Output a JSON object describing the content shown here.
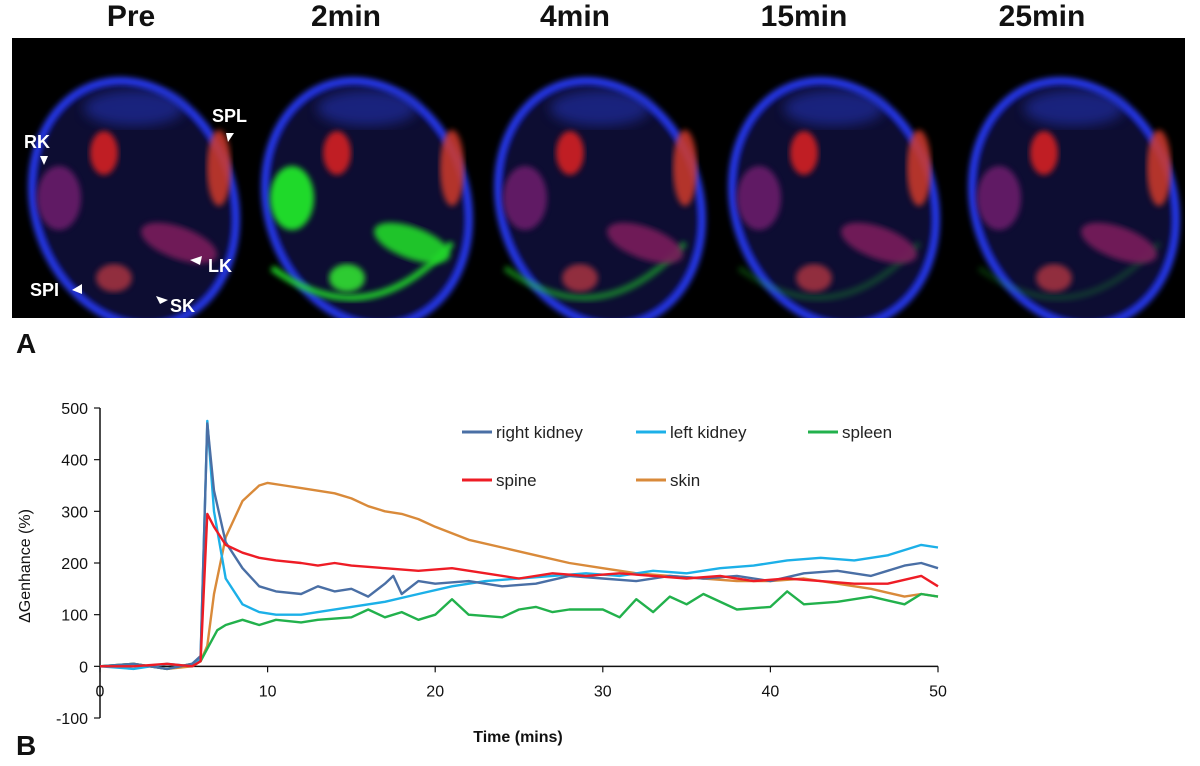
{
  "panel_a": {
    "label": "A",
    "frames": [
      {
        "title": "Pre"
      },
      {
        "title": "2min"
      },
      {
        "title": "4min"
      },
      {
        "title": "15min"
      },
      {
        "title": "25min"
      }
    ],
    "annotations": [
      "RK",
      "SPL",
      "LK",
      "SPI",
      "SK"
    ]
  },
  "panel_b": {
    "label": "B"
  },
  "chart_data": {
    "type": "line",
    "title": "",
    "xlabel": "Time (mins)",
    "ylabel": "ΔGenhance (%)",
    "xlim": [
      0,
      50
    ],
    "ylim": [
      -100,
      500
    ],
    "xticks": [
      0,
      10,
      20,
      30,
      40,
      50
    ],
    "yticks": [
      -100,
      0,
      100,
      200,
      300,
      400,
      500
    ],
    "legend": [
      "right kidney",
      "left kidney",
      "spleen",
      "spine",
      "skin"
    ],
    "series": [
      {
        "name": "right kidney",
        "color": "#4a6fa5",
        "x": [
          0,
          2,
          4,
          5.5,
          6,
          6.4,
          6.8,
          7.5,
          8.5,
          9.5,
          10.5,
          12,
          13,
          14,
          15,
          16,
          17,
          17.5,
          18,
          19,
          20,
          22,
          24,
          26,
          28,
          30,
          32,
          34,
          36,
          38,
          40,
          42,
          44,
          46,
          48,
          49,
          50
        ],
        "values": [
          0,
          5,
          -5,
          5,
          20,
          470,
          340,
          240,
          190,
          155,
          145,
          140,
          155,
          145,
          150,
          135,
          160,
          175,
          140,
          165,
          160,
          165,
          155,
          160,
          175,
          170,
          165,
          175,
          170,
          175,
          165,
          180,
          185,
          175,
          195,
          200,
          190
        ]
      },
      {
        "name": "left kidney",
        "color": "#1cb0e8",
        "x": [
          0,
          2,
          4,
          5.5,
          6,
          6.4,
          6.8,
          7.5,
          8.5,
          9.5,
          10.5,
          12,
          13,
          15,
          17,
          19,
          21,
          23,
          25,
          27,
          29,
          31,
          33,
          35,
          37,
          39,
          41,
          43,
          45,
          47,
          49,
          50
        ],
        "values": [
          0,
          -5,
          5,
          0,
          15,
          475,
          300,
          170,
          120,
          105,
          100,
          100,
          105,
          115,
          125,
          140,
          155,
          165,
          170,
          175,
          180,
          175,
          185,
          180,
          190,
          195,
          205,
          210,
          205,
          215,
          235,
          230
        ]
      },
      {
        "name": "spleen",
        "color": "#22b14c",
        "x": [
          0,
          2,
          4,
          5.5,
          6,
          6.5,
          7,
          7.5,
          8.5,
          9.5,
          10.5,
          12,
          13,
          15,
          16,
          17,
          18,
          19,
          20,
          21,
          22,
          24,
          25,
          26,
          27,
          28,
          30,
          31,
          32,
          33,
          34,
          35,
          36,
          38,
          40,
          41,
          42,
          44,
          46,
          48,
          49,
          50
        ],
        "values": [
          0,
          5,
          -5,
          5,
          10,
          40,
          70,
          80,
          90,
          80,
          90,
          85,
          90,
          95,
          110,
          95,
          105,
          90,
          100,
          130,
          100,
          95,
          110,
          115,
          105,
          110,
          110,
          95,
          130,
          105,
          135,
          120,
          140,
          110,
          115,
          145,
          120,
          125,
          135,
          120,
          140,
          135
        ]
      },
      {
        "name": "spine",
        "color": "#ee1c25",
        "x": [
          0,
          2,
          4,
          5.5,
          6,
          6.4,
          6.8,
          7.5,
          8.5,
          9.5,
          10.5,
          12,
          13,
          14,
          15,
          17,
          19,
          21,
          23,
          25,
          27,
          29,
          31,
          33,
          35,
          37,
          39,
          41,
          43,
          45,
          47,
          49,
          50
        ],
        "values": [
          0,
          0,
          5,
          0,
          10,
          295,
          270,
          235,
          220,
          210,
          205,
          200,
          195,
          200,
          195,
          190,
          185,
          190,
          180,
          170,
          180,
          175,
          180,
          175,
          170,
          175,
          165,
          170,
          165,
          160,
          160,
          175,
          155
        ]
      },
      {
        "name": "skin",
        "color": "#d98a3a",
        "x": [
          0,
          2,
          4,
          5.5,
          6,
          6.4,
          6.8,
          7.5,
          8.5,
          9.5,
          10,
          11,
          12,
          13,
          14,
          15,
          16,
          17,
          18,
          19,
          20,
          22,
          24,
          26,
          28,
          30,
          32,
          34,
          36,
          38,
          40,
          42,
          44,
          46,
          48,
          49,
          50
        ],
        "values": [
          0,
          5,
          -5,
          0,
          10,
          40,
          140,
          250,
          320,
          350,
          355,
          350,
          345,
          340,
          335,
          325,
          310,
          300,
          295,
          285,
          270,
          245,
          230,
          215,
          200,
          190,
          180,
          175,
          170,
          165,
          165,
          170,
          160,
          150,
          135,
          140,
          135
        ]
      }
    ]
  }
}
